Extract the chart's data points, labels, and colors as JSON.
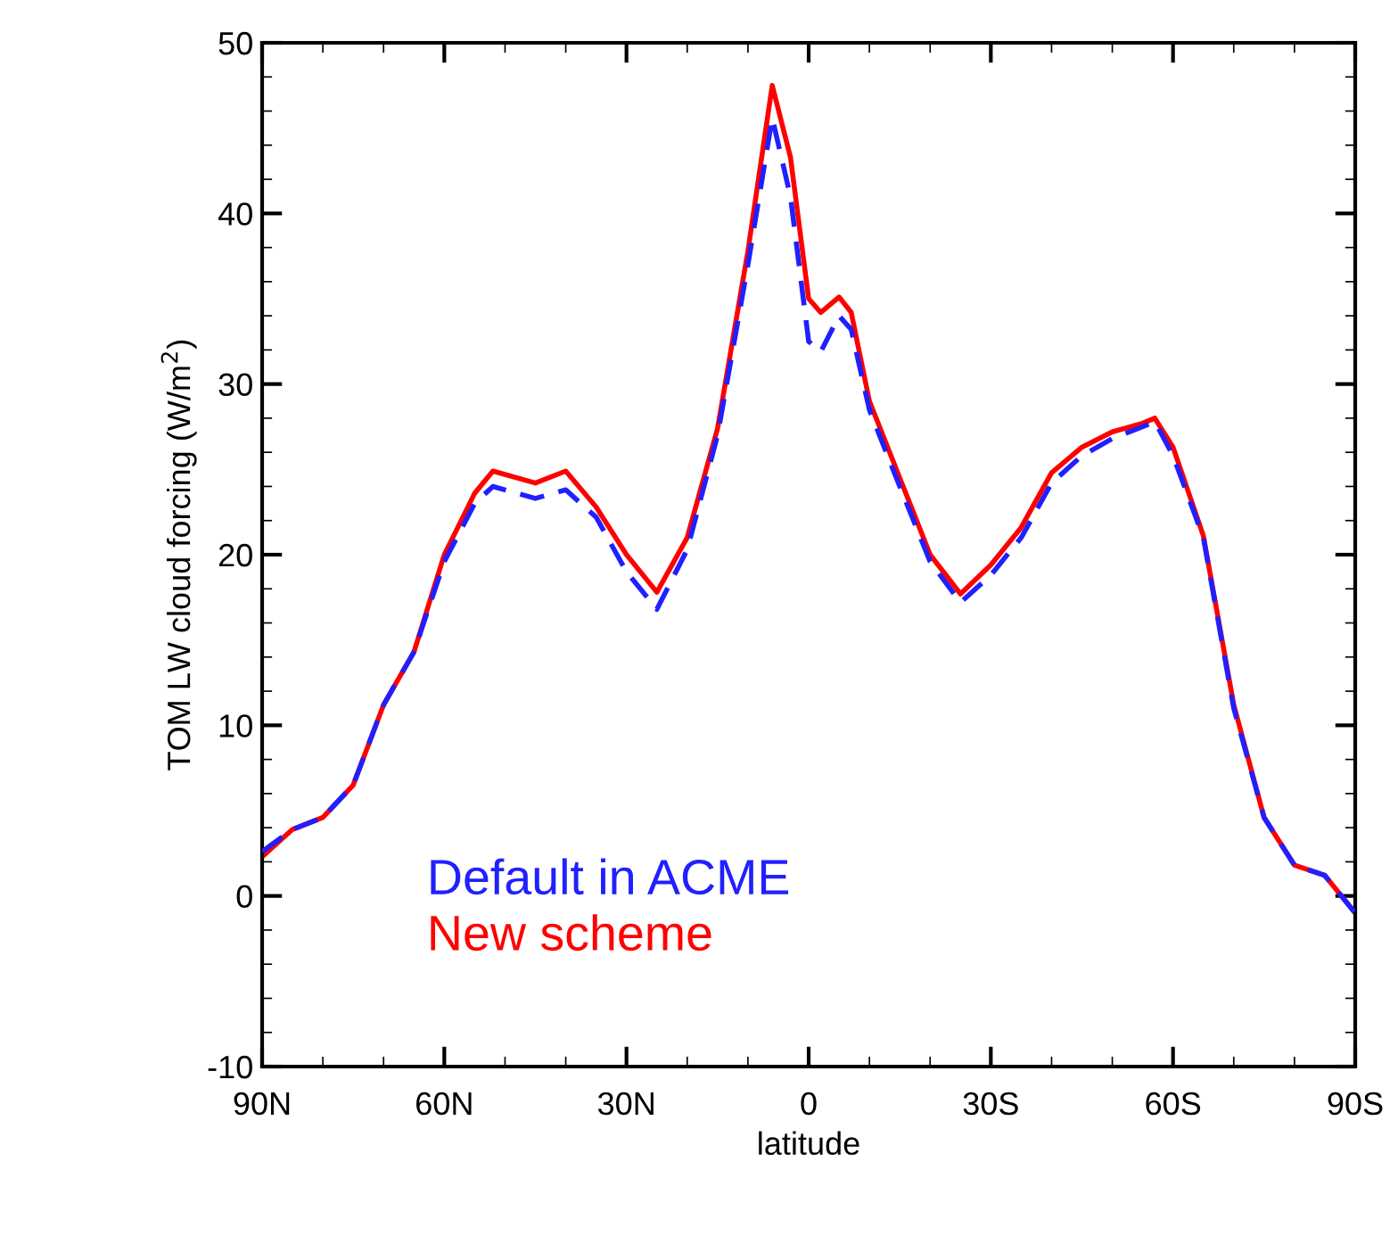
{
  "chart_data": {
    "type": "line",
    "xlabel": "latitude",
    "ylabel": "TOM LW cloud forcing (W/m$^{2}$)",
    "x": [
      90,
      85,
      80,
      75,
      70,
      65,
      60,
      55,
      52,
      45,
      40,
      35,
      30,
      25,
      20,
      15,
      10,
      6,
      3,
      0,
      -2,
      -5,
      -7,
      -10,
      -15,
      -20,
      -25,
      -30,
      -35,
      -40,
      -45,
      -50,
      -55,
      -57,
      -60,
      -65,
      -70,
      -75,
      -80,
      -85,
      -90
    ],
    "series": [
      {
        "name": "Default in ACME",
        "color": "#2020ff",
        "line_style": "dashed",
        "values": [
          2.6,
          3.9,
          4.6,
          6.5,
          11.2,
          14.3,
          19.6,
          23.0,
          24.0,
          23.3,
          23.8,
          22.2,
          19.0,
          16.8,
          20.3,
          27.0,
          37.0,
          45.6,
          41.0,
          32.5,
          31.9,
          34.0,
          33.2,
          28.5,
          24.0,
          19.6,
          17.2,
          18.8,
          21.0,
          24.2,
          25.8,
          26.8,
          27.5,
          27.8,
          25.8,
          21.0,
          11.0,
          4.6,
          1.8,
          1.2,
          -1.0
        ]
      },
      {
        "name": "New scheme",
        "color": "#ff0000",
        "line_style": "solid",
        "values": [
          2.3,
          3.9,
          4.6,
          6.5,
          11.2,
          14.3,
          20.0,
          23.6,
          24.9,
          24.2,
          24.9,
          22.8,
          20.0,
          17.8,
          21.0,
          27.4,
          37.8,
          47.5,
          43.3,
          35.0,
          34.2,
          35.1,
          34.2,
          29.0,
          24.5,
          20.0,
          17.7,
          19.4,
          21.6,
          24.8,
          26.3,
          27.2,
          27.7,
          28.0,
          26.3,
          21.1,
          11.2,
          4.6,
          1.8,
          1.2,
          -1.0
        ]
      }
    ],
    "xlim": [
      90,
      -90
    ],
    "xticks": [
      {
        "value": 90,
        "label": "90N"
      },
      {
        "value": 60,
        "label": "60N"
      },
      {
        "value": 30,
        "label": "30N"
      },
      0,
      {
        "value": -30,
        "label": "30S"
      },
      {
        "value": -60,
        "label": "60S"
      },
      {
        "value": -90,
        "label": "90S"
      }
    ],
    "ylim": [
      -10,
      50
    ],
    "yticks": [
      -10,
      0,
      10,
      20,
      30,
      40,
      50
    ],
    "grid": false,
    "legend": "bottom left"
  }
}
